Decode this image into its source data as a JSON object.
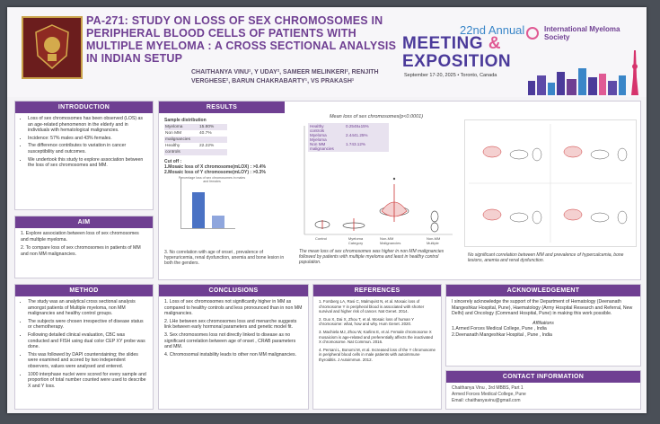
{
  "header": {
    "title": "PA-271: STUDY ON LOSS OF SEX CHROMOSOMES IN PERIPHERAL BLOOD CELLS OF PATIENTS WITH MULTIPLE MYELOMA : A CROSS SECTIONAL ANALYSIS IN INDIAN SETUP",
    "authors": "CHAITHANYA VINU¹, Y UDAY², SAMEER MELINKERI², RENJITH VERGHESE², BARUN CHAKRABARTY¹, VS PRAKASH¹"
  },
  "conference": {
    "annual": "22nd Annual",
    "meeting": "MEETING",
    "amp": "&",
    "exposition": "EXPOSITION",
    "dates": "September 17-20, 2025 • Toronto, Canada",
    "society": "International Myeloma Society"
  },
  "introduction": {
    "heading": "INTRODUCTION",
    "bullets": [
      "Loss of sex chromosomes has been observed (LOS) as an age-related phenomenon in the elderly and in individuals with hematological malignancies.",
      "Incidence: 57% males and 43% females.",
      "The difference contributes to variation in cancer susceptibility and outcomes.",
      "We undertook this study to explore association between the loss of sex chromosomes and MM."
    ]
  },
  "aim": {
    "heading": "AIM",
    "items": [
      "1. Explore association between loss of sex chromosomes and multiple myeloma.",
      "2. To compare loss of sex chromosomes in patients of MM and non MM malignancies."
    ]
  },
  "method": {
    "heading": "METHOD",
    "bullets": [
      "The study was an analytical cross sectional analysis amongst patients of Multiple myeloma, non MM malignancies and healthy control groups.",
      "The subjects were chosen irrespective of disease status or chemotherapy.",
      "Following detailed clinical evaluation, CBC was conducted and FISH using dual color CEP XY probe was done.",
      "This was followed by DAPI counterstaining; the slides were examined and scored by two independent observers, values were analysed and entered.",
      "1000 interphase nuclei were scored for every sample and proportion of total number counted were used to describe X and Y loss."
    ]
  },
  "results": {
    "heading": "RESULTS",
    "sample_title": "Sample distribution",
    "sample_rows": [
      {
        "label": "Myeloma",
        "value": "15.80%"
      },
      {
        "label": "Non MM",
        "value": "40.7%"
      },
      {
        "label": "malignancies",
        "value": ""
      },
      {
        "label": "Healthy",
        "value": "22.22%"
      },
      {
        "label": "controls",
        "value": ""
      }
    ],
    "cutoff_title": "Cut off :",
    "cutoff_1": "1.Mosaic loss of X chromosome(mLOX) : >0.4%",
    "cutoff_2": "2.Mosaic loss of Y chromosome(mLOY) : >0.3%",
    "bar_caption": "Percentage loss of sex chromosomes in males and females",
    "note": "3. No correlation with age of onset , prevalence of hyperuricemia, renal dysfunction, anemia and bone lesion in both the genders.",
    "mean_title": "Mean loss of sex chromosomes(p<0.0001)",
    "legend": [
      {
        "label": "Healthy",
        "value": "0.2548±15%"
      },
      {
        "label": "controls",
        "value": ""
      },
      {
        "label": "Myeloma",
        "value": "2.4441.25%"
      },
      {
        "label": "Myeloma",
        "value": ""
      },
      {
        "label": "Non MM",
        "value": "1.743.12%"
      },
      {
        "label": "malignancies",
        "value": ""
      }
    ],
    "x_categories": [
      "Control",
      "Myeloma Category",
      "Non-MM Malignancies",
      "Non-MM Multiple"
    ],
    "mean_caption": "The mean loss of sex chromosomes was higher in non MM malignancies followed by patients with multiple myeloma and least in healthy control population.",
    "right_caption": "No significant correlation between MM and prevalence of hypercalcemia, bone lesions, anemia and renal dysfunction."
  },
  "conclusions": {
    "heading": "CONCLUSIONS",
    "items": [
      "1. Loss of sex chromosomes not significantly higher in MM as compared to healthy controls and less pronounced than in non MM malignancies.",
      "2. LHe between sex chromosomes loss and menarche suggests link between early hormonal parameters and genetic model fit.",
      "3. Sex chromosomes loss not directly linked to disease as no significant correlation between age of onset , CRAB parameters and MM.",
      "4. Chromosomal instability leads to other non MM malignancies."
    ]
  },
  "references": {
    "heading": "REFERENCES",
    "items": [
      "1. Forsberg LA, Rasi C, Malmqvist N, et al. Mosaic loss of chromosome Y in peripheral blood is associated with shorter survival and higher risk of cancer. Nat Genet. 2014.",
      "2. Guo X, Dai X, Zhou T, et al. Mosaic loss of human Y chromosome: what, how and why. Hum Genet. 2020.",
      "3. Machiela MJ, Zhou W, Karlins E, et al. Female chromosome X mosaicism is age-related and preferentially affects the inactivated X chromosome. Nat Commun. 2016.",
      "4. Persani L, Bonomi M, et al. Increased loss of the Y chromosome in peripheral blood cells in male patients with autoimmune thyroiditis. J Autoimmun. 2012."
    ]
  },
  "acknowledgement": {
    "heading": "ACKNOWLEDGEMENT",
    "text": "I sincerely acknowledge the support of the Department of Hematology (Deenanath Mangeshkar Hospital, Pune), Haematology (Army Hospital Research and Referral, New Delhi) and Oncology (Command Hospital, Pune) in making this work possible.",
    "aff_title": "Affiliations",
    "aff_1": "1.Armed Forces Medical College, Pune , India",
    "aff_2": "2.Deenanath Mangeshkar Hospital , Pune , India"
  },
  "contact": {
    "heading": "CONTACT INFORMATION",
    "line1": "Chaithanya Vinu , 3rd MBBS, Part 1",
    "line2": "Armed Forces Medical College, Pune",
    "line3": "Email: chaithanyavinu@gmail.com"
  }
}
